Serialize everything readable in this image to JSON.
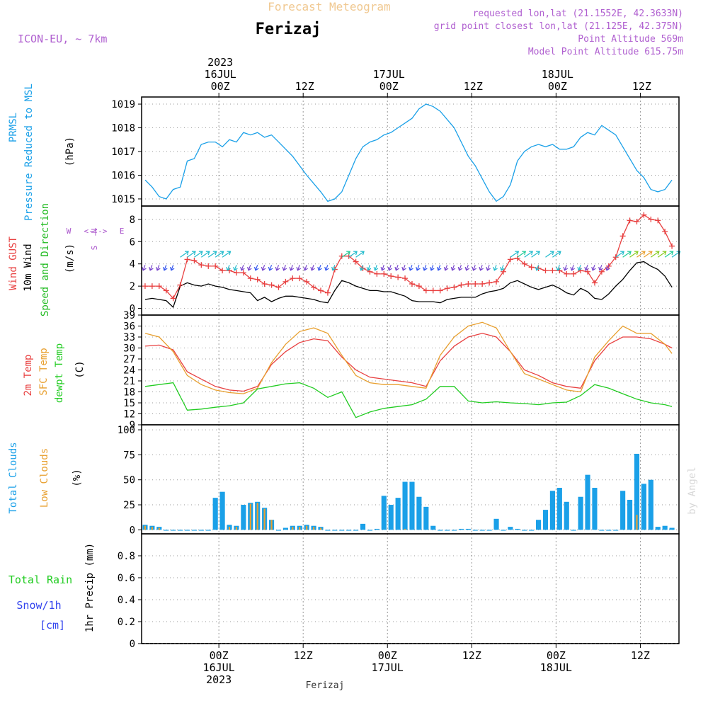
{
  "header": {
    "top_title": "Forecast Meteogram",
    "location": "Ferizaj",
    "model": "ICON-EU, ~ 7km",
    "requested": "requested lon,lat (21.1552E, 42.3633N)",
    "grid": "grid point closest lon,lat (21.125E, 42.375N)",
    "point_alt": "Point Altitude 569m",
    "model_alt": "Model Point Altitude 615.75m",
    "watermark": "by Angel",
    "footer_location": "Ferizaj"
  },
  "colors": {
    "pressure": "#1aa0e8",
    "gust": "#e84040",
    "wind": "#000000",
    "wind_dir_label": "#22bb22",
    "temp2m": "#e84040",
    "sfc": "#e8a030",
    "dewpt": "#22cc22",
    "total_clouds": "#1aa0e8",
    "low_clouds": "#e8a030",
    "rain": "#22cc22",
    "snow": "#3344ee",
    "compass": "#aa55cc",
    "header_info": "#b060d0",
    "top_title": "#f0c890"
  },
  "time_axis": {
    "top_labels": [
      {
        "t": 0,
        "lines": [
          "2023",
          "16JUL",
          "00Z"
        ]
      },
      {
        "t": 12,
        "lines": [
          "12Z"
        ]
      },
      {
        "t": 24,
        "lines": [
          "17JUL",
          "00Z"
        ]
      },
      {
        "t": 36,
        "lines": [
          "12Z"
        ]
      },
      {
        "t": 48,
        "lines": [
          "18JUL",
          "00Z"
        ]
      },
      {
        "t": 60,
        "lines": [
          "12Z"
        ]
      }
    ],
    "bottom_labels": [
      {
        "t": 0,
        "lines": [
          "00Z",
          "16JUL",
          "2023"
        ]
      },
      {
        "t": 12,
        "lines": [
          "12Z"
        ]
      },
      {
        "t": 24,
        "lines": [
          "00Z",
          "17JUL"
        ]
      },
      {
        "t": 36,
        "lines": [
          "12Z"
        ]
      },
      {
        "t": 48,
        "lines": [
          "00Z",
          "18JUL"
        ]
      },
      {
        "t": 60,
        "lines": [
          "12Z"
        ]
      }
    ]
  },
  "chart_data": [
    {
      "type": "line",
      "panel": "pressure",
      "labels": {
        "name": "PRMSL",
        "desc": "Pressure Reduced to MSL",
        "unit": "(hPa)"
      },
      "xlim": [
        -11,
        65.5
      ],
      "ylim": [
        1014.7,
        1019.3
      ],
      "yticks": [
        1015,
        1016,
        1017,
        1018,
        1019
      ],
      "x": [
        -10.5,
        -9.5,
        -8.5,
        -7.5,
        -6.5,
        -5.5,
        -4.5,
        -3.5,
        -2.5,
        -1.5,
        -0.5,
        0.5,
        1.5,
        2.5,
        3.5,
        4.5,
        5.5,
        6.5,
        7.5,
        8.5,
        10.5,
        12.5,
        14.5,
        15.5,
        16.5,
        17.5,
        18.5,
        19.5,
        20.5,
        21.5,
        22.5,
        23.5,
        24.5,
        25.5,
        26.5,
        27.5,
        28.5,
        29.5,
        30.5,
        31.5,
        33.5,
        35.5,
        36.5,
        38.5,
        39.5,
        40.5,
        41.5,
        42.5,
        43.5,
        44.5,
        45.5,
        46.5,
        47.5,
        48.5,
        49.5,
        50.5,
        51.5,
        52.5,
        53.5,
        54.5,
        55.5,
        56.5,
        57.5,
        58.5,
        59.5,
        60.5,
        61.5,
        62.5,
        63.5,
        64.5
      ],
      "series": [
        {
          "values": [
            1015.8,
            1015.5,
            1015.1,
            1015.0,
            1015.4,
            1015.5,
            1016.6,
            1016.7,
            1017.3,
            1017.4,
            1017.4,
            1017.2,
            1017.5,
            1017.4,
            1017.8,
            1017.7,
            1017.8,
            1017.6,
            1017.7,
            1017.4,
            1016.8,
            1016.0,
            1015.3,
            1014.9,
            1015.0,
            1015.3,
            1016.0,
            1016.7,
            1017.2,
            1017.4,
            1017.5,
            1017.7,
            1017.8,
            1018.0,
            1018.2,
            1018.4,
            1018.8,
            1019.0,
            1018.9,
            1018.7,
            1018.0,
            1016.8,
            1016.4,
            1015.3,
            1014.9,
            1015.1,
            1015.6,
            1016.6,
            1017.0,
            1017.2,
            1017.3,
            1017.2,
            1017.3,
            1017.1,
            1017.1,
            1017.2,
            1017.6,
            1017.8,
            1017.7,
            1018.1,
            1017.9,
            1017.7,
            1017.2,
            1016.7,
            1016.2,
            1015.9,
            1015.4,
            1015.3,
            1015.4,
            1015.8
          ]
        }
      ]
    },
    {
      "type": "line",
      "panel": "wind",
      "labels": {
        "gust": "Wind GUST",
        "wind": "10m Wind",
        "dir": "Speed and Direction",
        "unit": "(m/s)",
        "compass": [
          "N",
          "S",
          "W",
          "E",
          "<-|->"
        ]
      },
      "xlim": [
        -11,
        65.5
      ],
      "ylim": [
        -0.6,
        9.2
      ],
      "yticks": [
        0,
        2,
        4,
        6,
        8
      ],
      "x": [
        -10.5,
        -9.5,
        -8.5,
        -7.5,
        -6.5,
        -5.5,
        -4.5,
        -3.5,
        -2.5,
        -1.5,
        -0.5,
        0.5,
        1.5,
        2.5,
        3.5,
        4.5,
        5.5,
        6.5,
        7.5,
        8.5,
        9.5,
        10.5,
        11.5,
        12.5,
        13.5,
        14.5,
        15.5,
        16.5,
        17.5,
        18.5,
        19.5,
        20.5,
        21.5,
        22.5,
        23.5,
        24.5,
        25.5,
        26.5,
        27.5,
        28.5,
        29.5,
        30.5,
        31.5,
        32.5,
        33.5,
        34.5,
        35.5,
        36.5,
        37.5,
        38.5,
        39.5,
        40.5,
        41.5,
        42.5,
        43.5,
        44.5,
        45.5,
        46.5,
        47.5,
        48.5,
        49.5,
        50.5,
        51.5,
        52.5,
        53.5,
        54.5,
        55.5,
        56.5,
        57.5,
        58.5,
        59.5,
        60.5,
        61.5,
        62.5,
        63.5,
        64.5
      ],
      "series": [
        {
          "name": "Wind GUST",
          "values": [
            2.0,
            2.0,
            2.0,
            1.6,
            0.9,
            2.1,
            4.4,
            4.3,
            3.9,
            3.8,
            3.8,
            3.4,
            3.4,
            3.2,
            3.2,
            2.7,
            2.6,
            2.2,
            2.1,
            1.9,
            2.4,
            2.7,
            2.7,
            2.4,
            1.9,
            1.6,
            1.4,
            3.5,
            4.7,
            4.7,
            4.2,
            3.6,
            3.3,
            3.1,
            3.1,
            2.9,
            2.8,
            2.7,
            2.2,
            2.0,
            1.6,
            1.6,
            1.6,
            1.8,
            1.9,
            2.1,
            2.2,
            2.2,
            2.2,
            2.3,
            2.4,
            3.3,
            4.4,
            4.5,
            4.0,
            3.7,
            3.6,
            3.4,
            3.4,
            3.4,
            3.1,
            3.1,
            3.4,
            3.3,
            2.3,
            3.3,
            3.8,
            4.6,
            6.5,
            7.9,
            7.8,
            8.4,
            8.0,
            7.9,
            6.9,
            5.6
          ]
        },
        {
          "name": "10m Wind",
          "values": [
            0.8,
            0.9,
            0.8,
            0.7,
            0.1,
            2.0,
            2.3,
            2.1,
            2.0,
            2.2,
            2.0,
            1.9,
            1.7,
            1.6,
            1.5,
            1.4,
            0.7,
            1.0,
            0.6,
            0.9,
            1.1,
            1.1,
            1.0,
            0.9,
            0.8,
            0.6,
            0.5,
            1.6,
            2.5,
            2.3,
            2.0,
            1.8,
            1.6,
            1.6,
            1.5,
            1.5,
            1.3,
            1.1,
            0.7,
            0.6,
            0.6,
            0.6,
            0.5,
            0.8,
            0.9,
            1.0,
            1.0,
            1.0,
            1.3,
            1.5,
            1.6,
            1.8,
            2.3,
            2.5,
            2.2,
            1.9,
            1.7,
            1.9,
            2.1,
            1.8,
            1.4,
            1.2,
            1.8,
            1.5,
            0.9,
            0.8,
            1.3,
            2.0,
            2.6,
            3.4,
            4.1,
            4.2,
            3.8,
            3.5,
            2.9,
            1.9
          ]
        }
      ]
    },
    {
      "type": "line",
      "panel": "temperature",
      "labels": {
        "t2m": "2m Temp",
        "sfc": "SFC Temp",
        "dew": "dewpt Temp",
        "unit": "(C)"
      },
      "xlim": [
        -11,
        65.5
      ],
      "ylim": [
        9,
        39
      ],
      "yticks": [
        9,
        12,
        15,
        18,
        21,
        24,
        27,
        30,
        33,
        36,
        39
      ],
      "x": [
        -10.5,
        -8.5,
        -6.5,
        -4.5,
        -2.5,
        -0.5,
        1.5,
        3.5,
        5.5,
        7.5,
        9.5,
        11.5,
        13.5,
        15.5,
        17.5,
        19.5,
        21.5,
        23.5,
        25.5,
        27.5,
        29.5,
        31.5,
        33.5,
        35.5,
        37.5,
        39.5,
        41.5,
        43.5,
        45.5,
        47.5,
        49.5,
        51.5,
        53.5,
        55.5,
        57.5,
        59.5,
        61.5,
        63.5,
        64.5
      ],
      "series": [
        {
          "name": "2m Temp",
          "values": [
            30.5,
            30.8,
            29.5,
            23.5,
            21.5,
            19.5,
            18.5,
            18.2,
            19.5,
            25.5,
            29.0,
            31.5,
            32.5,
            32.0,
            27.5,
            24.0,
            22.0,
            21.5,
            21.0,
            20.5,
            19.5,
            26.5,
            30.5,
            33.0,
            34.0,
            33.0,
            29.0,
            24.0,
            22.5,
            20.5,
            19.5,
            19.0,
            26.5,
            31.0,
            33.0,
            33.0,
            32.5,
            31.0,
            30.0
          ]
        },
        {
          "name": "SFC Temp",
          "values": [
            34.0,
            33.0,
            29.0,
            22.5,
            20.0,
            18.5,
            17.8,
            17.5,
            19.0,
            26.0,
            31.0,
            34.5,
            35.5,
            34.0,
            28.0,
            22.5,
            20.5,
            20.0,
            20.0,
            19.5,
            19.0,
            28.0,
            33.0,
            36.0,
            37.0,
            35.5,
            29.0,
            23.0,
            21.5,
            20.0,
            18.5,
            18.0,
            27.5,
            32.0,
            36.0,
            34.0,
            34.0,
            31.0,
            28.5
          ]
        },
        {
          "name": "dewpt Temp",
          "values": [
            19.5,
            20.0,
            20.5,
            13.0,
            13.3,
            13.8,
            14.2,
            15.0,
            18.8,
            19.5,
            20.2,
            20.5,
            19.0,
            16.5,
            18.0,
            11.0,
            12.5,
            13.5,
            14.0,
            14.5,
            16.0,
            19.5,
            19.5,
            15.5,
            15.0,
            15.3,
            15.0,
            14.8,
            14.5,
            15.0,
            15.2,
            17.0,
            20.0,
            19.0,
            17.5,
            16.0,
            15.0,
            14.5,
            14.0
          ]
        }
      ]
    },
    {
      "type": "bar",
      "panel": "clouds",
      "labels": {
        "total": "Total Clouds",
        "low": "Low Clouds",
        "unit": "(%)"
      },
      "xlim": [
        -11,
        65.5
      ],
      "ylim": [
        -4,
        105
      ],
      "yticks": [
        0,
        25,
        50,
        75,
        100
      ],
      "x": [
        -10.5,
        -9.5,
        -8.5,
        -7.5,
        -6.5,
        -5.5,
        -4.5,
        -3.5,
        -2.5,
        -1.5,
        -0.5,
        0.5,
        1.5,
        2.5,
        3.5,
        4.5,
        5.5,
        6.5,
        7.5,
        8.5,
        9.5,
        10.5,
        11.5,
        12.5,
        13.5,
        14.5,
        15.5,
        16.5,
        17.5,
        18.5,
        19.5,
        20.5,
        21.5,
        22.5,
        23.5,
        24.5,
        25.5,
        26.5,
        27.5,
        28.5,
        29.5,
        30.5,
        31.5,
        32.5,
        33.5,
        34.5,
        35.5,
        36.5,
        37.5,
        38.5,
        39.5,
        40.5,
        41.5,
        42.5,
        43.5,
        44.5,
        45.5,
        46.5,
        47.5,
        48.5,
        49.5,
        50.5,
        51.5,
        52.5,
        53.5,
        54.5,
        55.5,
        56.5,
        57.5,
        58.5,
        59.5,
        60.5,
        61.5,
        62.5,
        63.5,
        64.5
      ],
      "series": [
        {
          "name": "Total Clouds",
          "values": [
            5,
            4,
            3,
            0,
            0,
            0,
            0,
            0,
            0,
            0,
            32,
            38,
            5,
            4,
            25,
            27,
            28,
            22,
            10,
            0,
            2,
            4,
            4,
            5,
            4,
            3,
            0,
            0,
            0,
            0,
            0,
            6,
            0,
            1,
            34,
            25,
            32,
            48,
            48,
            33,
            23,
            4,
            0,
            0,
            0,
            1,
            1,
            0,
            0,
            0,
            11,
            0,
            3,
            1,
            0,
            0,
            10,
            20,
            39,
            42,
            28,
            0,
            33,
            55,
            42,
            0,
            0,
            0,
            39,
            30,
            76,
            46,
            50,
            3,
            4,
            2
          ]
        },
        {
          "name": "Low Clouds",
          "values": [
            4,
            3,
            2,
            0,
            0,
            0,
            0,
            0,
            0,
            0,
            0,
            0,
            3,
            3,
            0,
            26,
            27,
            21,
            10,
            0,
            0,
            3,
            3,
            4,
            3,
            2,
            0,
            0,
            0,
            0,
            0,
            0,
            0,
            0,
            0,
            0,
            0,
            1,
            0,
            0,
            0,
            0,
            0,
            0,
            0,
            0,
            0,
            0,
            0,
            0,
            0,
            0,
            0,
            0,
            0,
            0,
            0,
            0,
            0,
            0,
            0,
            0,
            0,
            0,
            0,
            0,
            0,
            0,
            0,
            0,
            15,
            0,
            0,
            0,
            0,
            0
          ]
        }
      ]
    },
    {
      "type": "bar",
      "panel": "precip",
      "labels": {
        "total_rain": "Total Rain",
        "snow": "Snow/1h",
        "cm": "[cm]",
        "unit": "1hr Precip (mm)"
      },
      "xlim": [
        -11,
        65.5
      ],
      "ylim": [
        0,
        1.0
      ],
      "yticks": [
        0,
        0.2,
        0.4,
        0.6,
        0.8
      ],
      "x": [],
      "series": []
    }
  ]
}
